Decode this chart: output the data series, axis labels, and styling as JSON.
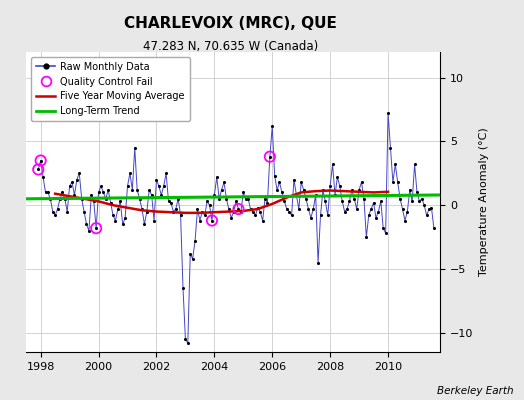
{
  "title": "CHARLEVOIX (MRC), QUE",
  "subtitle": "47.283 N, 70.635 W (Canada)",
  "ylabel": "Temperature Anomaly (°C)",
  "credit": "Berkeley Earth",
  "xlim": [
    1997.5,
    2011.8
  ],
  "ylim": [
    -11.5,
    12
  ],
  "yticks": [
    -10,
    -5,
    0,
    5,
    10
  ],
  "xticks": [
    1998,
    2000,
    2002,
    2004,
    2006,
    2008,
    2010
  ],
  "bg_color": "#e8e8e8",
  "plot_bg_color": "#ffffff",
  "raw_color": "#4444cc",
  "raw_marker_color": "#000000",
  "ma_color": "#cc0000",
  "trend_color": "#00bb00",
  "qc_color": "#ff00ff",
  "monthly_data": [
    [
      1997.917,
      2.8
    ],
    [
      1998.0,
      3.5
    ],
    [
      1998.083,
      2.2
    ],
    [
      1998.167,
      1.0
    ],
    [
      1998.25,
      1.0
    ],
    [
      1998.333,
      0.5
    ],
    [
      1998.417,
      -0.5
    ],
    [
      1998.5,
      -0.8
    ],
    [
      1998.583,
      -0.3
    ],
    [
      1998.667,
      0.5
    ],
    [
      1998.75,
      1.0
    ],
    [
      1998.833,
      0.5
    ],
    [
      1998.917,
      -0.5
    ],
    [
      1999.0,
      1.5
    ],
    [
      1999.083,
      1.8
    ],
    [
      1999.167,
      0.8
    ],
    [
      1999.25,
      2.0
    ],
    [
      1999.333,
      2.5
    ],
    [
      1999.417,
      0.5
    ],
    [
      1999.5,
      -0.5
    ],
    [
      1999.583,
      -1.5
    ],
    [
      1999.667,
      -2.0
    ],
    [
      1999.75,
      0.8
    ],
    [
      1999.833,
      0.3
    ],
    [
      1999.917,
      -1.8
    ],
    [
      2000.0,
      1.0
    ],
    [
      2000.083,
      1.5
    ],
    [
      2000.167,
      1.0
    ],
    [
      2000.25,
      0.5
    ],
    [
      2000.333,
      1.2
    ],
    [
      2000.417,
      0.2
    ],
    [
      2000.5,
      -0.8
    ],
    [
      2000.583,
      -1.2
    ],
    [
      2000.667,
      -0.3
    ],
    [
      2000.75,
      0.3
    ],
    [
      2000.833,
      -1.5
    ],
    [
      2000.917,
      -1.0
    ],
    [
      2001.0,
      1.5
    ],
    [
      2001.083,
      2.5
    ],
    [
      2001.167,
      1.2
    ],
    [
      2001.25,
      4.5
    ],
    [
      2001.333,
      1.2
    ],
    [
      2001.417,
      0.5
    ],
    [
      2001.5,
      -0.3
    ],
    [
      2001.583,
      -1.5
    ],
    [
      2001.667,
      -0.5
    ],
    [
      2001.75,
      1.2
    ],
    [
      2001.833,
      0.8
    ],
    [
      2001.917,
      -1.2
    ],
    [
      2002.0,
      2.0
    ],
    [
      2002.083,
      1.5
    ],
    [
      2002.167,
      0.8
    ],
    [
      2002.25,
      1.5
    ],
    [
      2002.333,
      2.5
    ],
    [
      2002.417,
      0.3
    ],
    [
      2002.5,
      0.2
    ],
    [
      2002.583,
      -0.5
    ],
    [
      2002.667,
      -0.3
    ],
    [
      2002.75,
      0.5
    ],
    [
      2002.833,
      -0.8
    ],
    [
      2002.917,
      -6.5
    ],
    [
      2003.0,
      -10.5
    ],
    [
      2003.083,
      -10.8
    ],
    [
      2003.167,
      -3.8
    ],
    [
      2003.25,
      -4.2
    ],
    [
      2003.333,
      -2.8
    ],
    [
      2003.417,
      -0.3
    ],
    [
      2003.5,
      -1.2
    ],
    [
      2003.583,
      -0.5
    ],
    [
      2003.667,
      -0.8
    ],
    [
      2003.75,
      0.3
    ],
    [
      2003.833,
      0.0
    ],
    [
      2003.917,
      -1.2
    ],
    [
      2004.0,
      0.8
    ],
    [
      2004.083,
      2.2
    ],
    [
      2004.167,
      0.5
    ],
    [
      2004.25,
      1.2
    ],
    [
      2004.333,
      1.8
    ],
    [
      2004.417,
      0.5
    ],
    [
      2004.5,
      -0.3
    ],
    [
      2004.583,
      -1.0
    ],
    [
      2004.667,
      -0.5
    ],
    [
      2004.75,
      0.3
    ],
    [
      2004.833,
      -0.3
    ],
    [
      2004.917,
      -0.5
    ],
    [
      2005.0,
      1.0
    ],
    [
      2005.083,
      0.5
    ],
    [
      2005.167,
      0.5
    ],
    [
      2005.25,
      -0.3
    ],
    [
      2005.333,
      -0.5
    ],
    [
      2005.417,
      -0.8
    ],
    [
      2005.5,
      -0.2
    ],
    [
      2005.583,
      -0.5
    ],
    [
      2005.667,
      -1.2
    ],
    [
      2005.75,
      0.5
    ],
    [
      2005.833,
      0.2
    ],
    [
      2005.917,
      3.8
    ],
    [
      2006.0,
      6.2
    ],
    [
      2006.083,
      2.3
    ],
    [
      2006.167,
      1.2
    ],
    [
      2006.25,
      1.8
    ],
    [
      2006.333,
      1.0
    ],
    [
      2006.417,
      0.3
    ],
    [
      2006.5,
      -0.3
    ],
    [
      2006.583,
      -0.5
    ],
    [
      2006.667,
      -0.8
    ],
    [
      2006.75,
      2.0
    ],
    [
      2006.833,
      0.8
    ],
    [
      2006.917,
      -0.3
    ],
    [
      2007.0,
      1.8
    ],
    [
      2007.083,
      1.2
    ],
    [
      2007.167,
      0.5
    ],
    [
      2007.25,
      -0.3
    ],
    [
      2007.333,
      -1.0
    ],
    [
      2007.417,
      -0.3
    ],
    [
      2007.5,
      0.8
    ],
    [
      2007.583,
      -4.5
    ],
    [
      2007.667,
      -0.8
    ],
    [
      2007.75,
      1.2
    ],
    [
      2007.833,
      0.3
    ],
    [
      2007.917,
      -0.8
    ],
    [
      2008.0,
      1.5
    ],
    [
      2008.083,
      3.2
    ],
    [
      2008.167,
      0.8
    ],
    [
      2008.25,
      2.2
    ],
    [
      2008.333,
      1.5
    ],
    [
      2008.417,
      0.3
    ],
    [
      2008.5,
      -0.5
    ],
    [
      2008.583,
      -0.3
    ],
    [
      2008.667,
      0.3
    ],
    [
      2008.75,
      1.2
    ],
    [
      2008.833,
      0.5
    ],
    [
      2008.917,
      -0.3
    ],
    [
      2009.0,
      1.2
    ],
    [
      2009.083,
      1.8
    ],
    [
      2009.167,
      0.5
    ],
    [
      2009.25,
      -2.5
    ],
    [
      2009.333,
      -0.8
    ],
    [
      2009.417,
      -0.3
    ],
    [
      2009.5,
      0.2
    ],
    [
      2009.583,
      -1.0
    ],
    [
      2009.667,
      -0.5
    ],
    [
      2009.75,
      0.3
    ],
    [
      2009.833,
      -1.8
    ],
    [
      2009.917,
      -2.2
    ],
    [
      2010.0,
      7.2
    ],
    [
      2010.083,
      4.5
    ],
    [
      2010.167,
      1.8
    ],
    [
      2010.25,
      3.2
    ],
    [
      2010.333,
      1.8
    ],
    [
      2010.417,
      0.5
    ],
    [
      2010.5,
      -0.3
    ],
    [
      2010.583,
      -1.2
    ],
    [
      2010.667,
      -0.5
    ],
    [
      2010.75,
      1.2
    ],
    [
      2010.833,
      0.3
    ],
    [
      2010.917,
      3.2
    ],
    [
      2011.0,
      1.0
    ],
    [
      2011.083,
      0.3
    ],
    [
      2011.167,
      0.5
    ],
    [
      2011.25,
      0.0
    ],
    [
      2011.333,
      -0.8
    ],
    [
      2011.417,
      -0.3
    ],
    [
      2011.5,
      -0.2
    ],
    [
      2011.583,
      -1.8
    ]
  ],
  "qc_fail_points": [
    [
      1997.917,
      2.8
    ],
    [
      1998.0,
      3.5
    ],
    [
      1999.917,
      -1.8
    ],
    [
      2005.917,
      3.8
    ],
    [
      2003.917,
      -1.2
    ],
    [
      2004.833,
      -0.3
    ]
  ],
  "moving_avg": [
    [
      1998.5,
      0.9
    ],
    [
      1999.0,
      0.7
    ],
    [
      1999.5,
      0.5
    ],
    [
      2000.0,
      0.3
    ],
    [
      2000.5,
      0.0
    ],
    [
      2001.0,
      -0.2
    ],
    [
      2001.5,
      -0.4
    ],
    [
      2002.0,
      -0.5
    ],
    [
      2002.5,
      -0.55
    ],
    [
      2003.0,
      -0.6
    ],
    [
      2003.5,
      -0.6
    ],
    [
      2004.0,
      -0.55
    ],
    [
      2004.5,
      -0.5
    ],
    [
      2005.0,
      -0.45
    ],
    [
      2005.5,
      -0.3
    ],
    [
      2006.0,
      0.1
    ],
    [
      2006.5,
      0.6
    ],
    [
      2007.0,
      1.0
    ],
    [
      2007.5,
      1.1
    ],
    [
      2008.0,
      1.15
    ],
    [
      2008.5,
      1.1
    ],
    [
      2009.0,
      1.05
    ],
    [
      2009.5,
      1.0
    ],
    [
      2010.0,
      1.05
    ]
  ],
  "trend_x": [
    1997.5,
    2011.8
  ],
  "trend_y": [
    0.5,
    0.8
  ]
}
